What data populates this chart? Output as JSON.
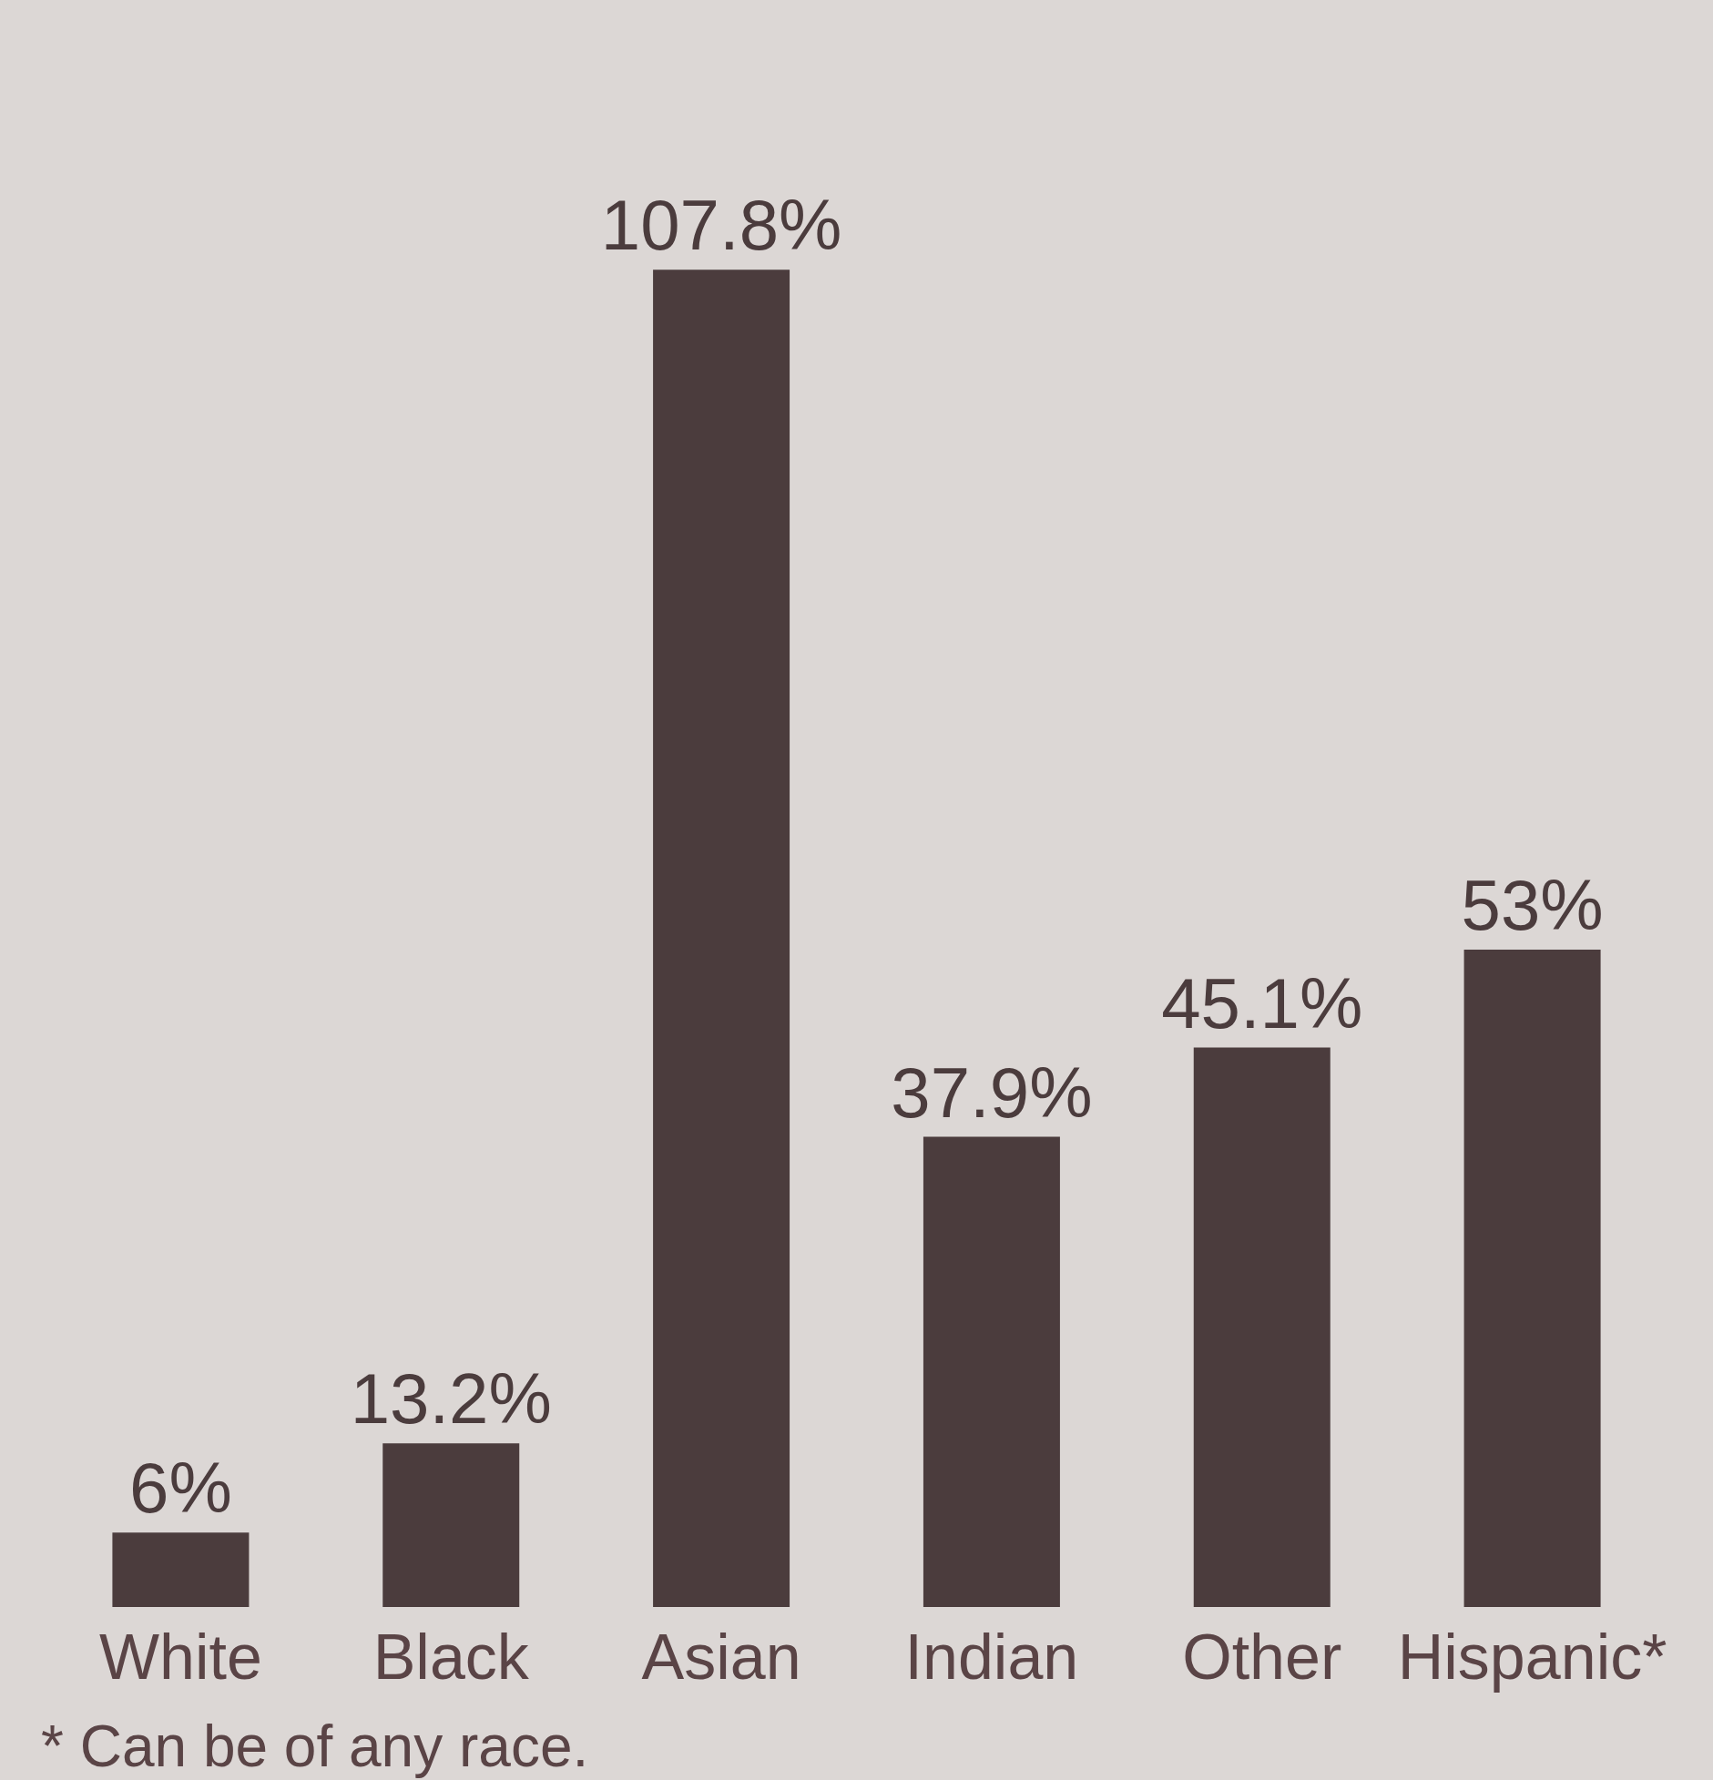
{
  "chart_data": {
    "type": "bar",
    "categories": [
      "White",
      "Black",
      "Asian",
      "Indian",
      "Other",
      "Hispanic*"
    ],
    "values": [
      6,
      13.2,
      107.8,
      37.9,
      45.1,
      53
    ],
    "value_labels": [
      "6%",
      "13.2%",
      "107.8%",
      "37.9%",
      "45.1%",
      "53%"
    ],
    "color": "#4b3c3d",
    "annotations": [
      "* Can be of any race."
    ]
  }
}
